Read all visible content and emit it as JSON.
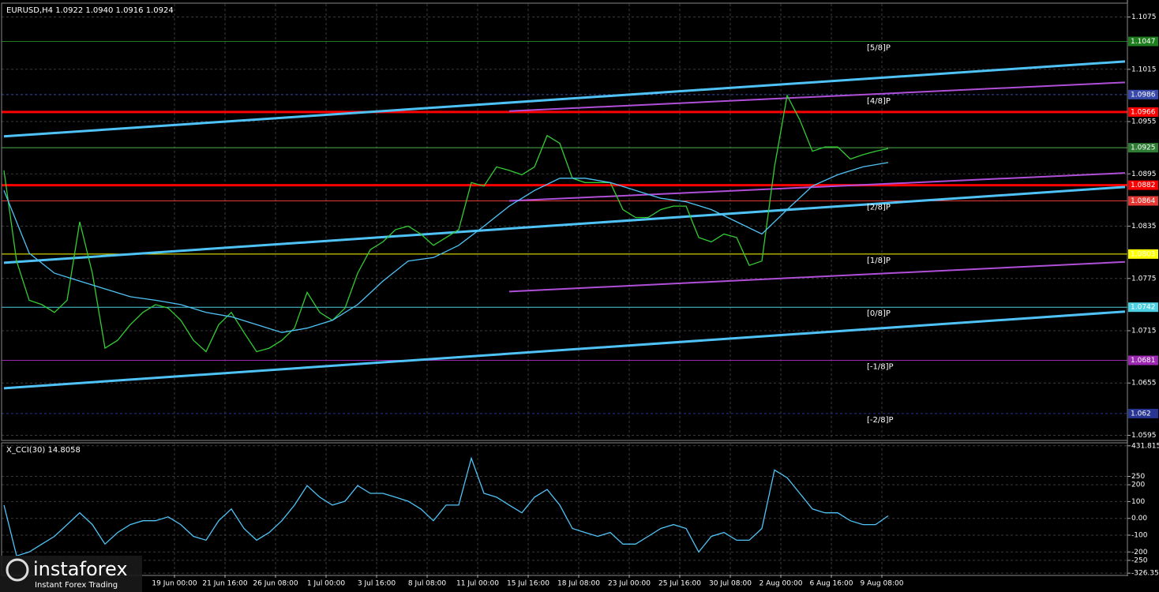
{
  "chart_data": [
    {
      "type": "line",
      "title": "EURUSD,H4  1.0922 1.0940 1.0916 1.0924",
      "background": "#000000",
      "grid": true,
      "xlim": [
        0,
        355
      ],
      "ylim": [
        1.059,
        1.109
      ],
      "yticks": [
        1.1075,
        1.1015,
        1.0955,
        1.0895,
        1.0835,
        1.0775,
        1.0715,
        1.0655,
        1.0595
      ],
      "series": [
        {
          "color": "#33cc33",
          "x": [
            0,
            4,
            8,
            12,
            16,
            20,
            24,
            28,
            32,
            36,
            40,
            44,
            48,
            52,
            56,
            60,
            64,
            68,
            72,
            76,
            80,
            84,
            88,
            92,
            96,
            100,
            104,
            108,
            112,
            116,
            120,
            124,
            128,
            132,
            136,
            140,
            144,
            148,
            152,
            156,
            160,
            164,
            168,
            172,
            176,
            180,
            184,
            188,
            192,
            196,
            200,
            204,
            208,
            212,
            216,
            220,
            224,
            228,
            232,
            236,
            240,
            244,
            248,
            252,
            256,
            260,
            264,
            268,
            272,
            276,
            280
          ],
          "values": [
            1.0899,
            1.0795,
            1.075,
            1.0745,
            1.0736,
            1.075,
            1.084,
            1.0781,
            1.0695,
            1.0704,
            1.0722,
            1.0736,
            1.0745,
            1.0741,
            1.0727,
            1.0704,
            1.0691,
            1.0722,
            1.0736,
            1.0713,
            1.0691,
            1.0695,
            1.0704,
            1.0718,
            1.0759,
            1.0736,
            1.0727,
            1.0741,
            1.0781,
            1.0808,
            1.0817,
            1.0831,
            1.0835,
            1.0826,
            1.0813,
            1.0822,
            1.0831,
            1.0885,
            1.0881,
            1.0903,
            1.0899,
            1.0894,
            1.0903,
            1.0939,
            1.093,
            1.089,
            1.0885,
            1.0885,
            1.0885,
            1.0854,
            1.0845,
            1.0845,
            1.0854,
            1.0858,
            1.0858,
            1.0822,
            1.0817,
            1.0826,
            1.0822,
            1.079,
            1.0795,
            1.0903,
            1.0985,
            1.0957,
            1.0921,
            1.0926,
            1.0926,
            1.0912,
            1.0917,
            1.0921,
            1.0924
          ]
        },
        {
          "color": "#4fc3f7",
          "x": [
            0,
            8,
            16,
            24,
            32,
            40,
            48,
            56,
            64,
            72,
            80,
            88,
            96,
            104,
            112,
            120,
            128,
            136,
            144,
            152,
            160,
            168,
            176,
            184,
            192,
            200,
            208,
            216,
            224,
            232,
            240,
            248,
            256,
            264,
            272,
            280
          ],
          "values": [
            1.0876,
            1.0804,
            1.0781,
            1.0772,
            1.0763,
            1.0754,
            1.075,
            1.0745,
            1.0736,
            1.0731,
            1.0722,
            1.0713,
            1.0718,
            1.0727,
            1.0745,
            1.0772,
            1.0795,
            1.0799,
            1.0813,
            1.0835,
            1.0858,
            1.0876,
            1.089,
            1.089,
            1.0885,
            1.0876,
            1.0867,
            1.0863,
            1.0854,
            1.084,
            1.0826,
            1.0854,
            1.0881,
            1.0894,
            1.0903,
            1.0908
          ]
        }
      ],
      "levels": [
        {
          "value": 1.1047,
          "label": "[5/8]P",
          "color": "#1e7d1e",
          "tag_color": "#1e7d1e",
          "width": 1
        },
        {
          "value": 1.0986,
          "label": "[4/8]P",
          "color": "#3949ab",
          "tag_color": "#3949ab",
          "width": 1,
          "dashed": true
        },
        {
          "value": 1.0966,
          "color": "#ff0000",
          "tag_color": "#ff0000",
          "width": 3
        },
        {
          "value": 1.0925,
          "color": "#4caf50",
          "tag_color": "#2e7d32",
          "width": 1
        },
        {
          "value": 1.0882,
          "color": "#ff0000",
          "tag_color": "#ff0000",
          "width": 3
        },
        {
          "value": 1.0864,
          "label": "[2/8]P",
          "color": "#e53935",
          "tag_color": "#e53935",
          "width": 1
        },
        {
          "value": 1.0803,
          "label": "[1/8]P",
          "color": "#ffff00",
          "tag_color": "#ffff00",
          "width": 1
        },
        {
          "value": 1.0742,
          "label": "[0/8]P",
          "color": "#4dd0e1",
          "tag_color": "#4dd0e1",
          "width": 1
        },
        {
          "value": 1.0681,
          "label": "[-1/8]P",
          "color": "#9c27b0",
          "tag_color": "#9c27b0",
          "width": 1
        },
        {
          "value": 1.062,
          "label": "[-2/8]P",
          "color": "#283593",
          "tag_color": "#283593",
          "width": 1,
          "dashed": true
        }
      ],
      "trend_lines": [
        {
          "x": [
            0,
            355
          ],
          "values": [
            1.0938,
            1.1024
          ],
          "color": "#4fc3f7",
          "width": 3
        },
        {
          "x": [
            0,
            355
          ],
          "values": [
            1.0793,
            1.088
          ],
          "color": "#4fc3f7",
          "width": 3
        },
        {
          "x": [
            0,
            355
          ],
          "values": [
            1.0649,
            1.0737
          ],
          "color": "#4fc3f7",
          "width": 3
        },
        {
          "x": [
            160,
            355
          ],
          "values": [
            1.0967,
            1.1
          ],
          "color": "#b04fd8",
          "width": 2
        },
        {
          "x": [
            160,
            355
          ],
          "values": [
            1.0864,
            1.0896
          ],
          "color": "#b04fd8",
          "width": 2
        },
        {
          "x": [
            160,
            355
          ],
          "values": [
            1.076,
            1.0794
          ],
          "color": "#b04fd8",
          "width": 2
        }
      ]
    },
    {
      "type": "line",
      "title": "X_CCI(30) 14.8058",
      "background": "#000000",
      "grid": true,
      "xlim": [
        0,
        355
      ],
      "ylim": [
        -335,
        445
      ],
      "yticks": [
        431.8158,
        250,
        200,
        100,
        {
          "value": 0,
          "label": "0.00"
        },
        -100,
        -200,
        -250,
        -326.3598
      ],
      "xticks": [
        {
          "value": 54,
          "label": "19 Jun 00:00"
        },
        {
          "value": 70,
          "label": "21 Jun 16:00"
        },
        {
          "value": 86,
          "label": "26 Jun 08:00"
        },
        {
          "value": 102,
          "label": "1 Jul 00:00"
        },
        {
          "value": 118,
          "label": "3 Jul 16:00"
        },
        {
          "value": 134,
          "label": "8 Jul 08:00"
        },
        {
          "value": 150,
          "label": "11 Jul 00:00"
        },
        {
          "value": 166,
          "label": "15 Jul 16:00"
        },
        {
          "value": 182,
          "label": "18 Jul 08:00"
        },
        {
          "value": 198,
          "label": "23 Jul 00:00"
        },
        {
          "value": 214,
          "label": "25 Jul 16:00"
        },
        {
          "value": 230,
          "label": "30 Jul 08:00"
        },
        {
          "value": 246,
          "label": "2 Aug 00:00"
        },
        {
          "value": 262,
          "label": "6 Aug 16:00"
        },
        {
          "value": 278,
          "label": "9 Aug 08:00"
        }
      ],
      "series": [
        {
          "color": "#4fc3f7",
          "x": [
            0,
            4,
            8,
            12,
            16,
            20,
            24,
            28,
            32,
            36,
            40,
            44,
            48,
            52,
            56,
            60,
            64,
            68,
            72,
            76,
            80,
            84,
            88,
            92,
            96,
            100,
            104,
            108,
            112,
            116,
            120,
            124,
            128,
            132,
            136,
            140,
            144,
            148,
            152,
            156,
            160,
            164,
            168,
            172,
            176,
            180,
            184,
            188,
            192,
            196,
            200,
            204,
            208,
            212,
            216,
            220,
            224,
            228,
            232,
            236,
            240,
            244,
            248,
            252,
            256,
            260,
            264,
            268,
            272,
            276,
            280
          ],
          "values": [
            79,
            -223,
            -200,
            -153,
            -107,
            -37,
            33,
            -37,
            -153,
            -84,
            -37,
            -14,
            -14,
            9,
            -37,
            -107,
            -130,
            -14,
            56,
            -60,
            -130,
            -84,
            -14,
            79,
            195,
            126,
            79,
            102,
            195,
            149,
            149,
            126,
            102,
            56,
            -14,
            79,
            79,
            358,
            149,
            126,
            79,
            33,
            126,
            172,
            79,
            -60,
            -84,
            -107,
            -84,
            -153,
            -153,
            -107,
            -60,
            -37,
            -60,
            -200,
            -107,
            -84,
            -130,
            -130,
            -60,
            288,
            242,
            149,
            56,
            33,
            33,
            -14,
            -37,
            -37,
            15
          ]
        }
      ]
    }
  ],
  "watermark": {
    "name": "instaforex",
    "tagline": "Instant Forex Trading"
  }
}
